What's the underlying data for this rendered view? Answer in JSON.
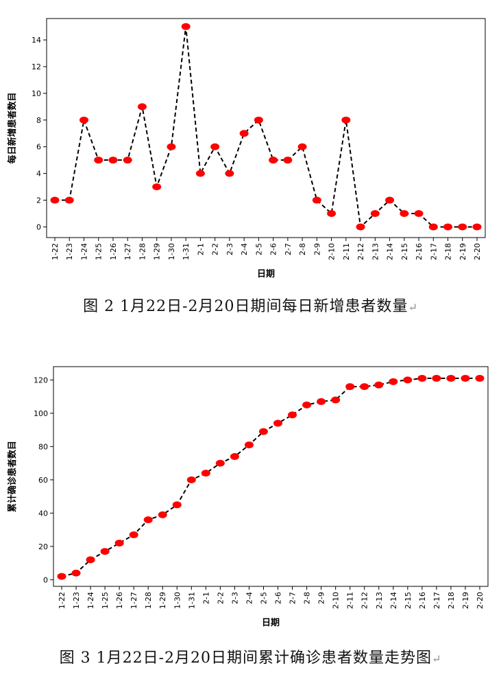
{
  "chart_data": [
    {
      "type": "line",
      "title": "",
      "xlabel": "日期",
      "ylabel": "每日新增患者数目",
      "categories": [
        "1-22",
        "1-23",
        "1-24",
        "1-25",
        "1-26",
        "1-27",
        "1-28",
        "1-29",
        "1-30",
        "1-31",
        "2-1",
        "2-2",
        "2-3",
        "2-4",
        "2-5",
        "2-6",
        "2-7",
        "2-8",
        "2-9",
        "2-10",
        "2-11",
        "2-12",
        "2-13",
        "2-14",
        "2-15",
        "2-16",
        "2-17",
        "2-18",
        "2-19",
        "2-20"
      ],
      "values": [
        2,
        2,
        8,
        5,
        5,
        5,
        9,
        3,
        6,
        15,
        4,
        6,
        4,
        7,
        8,
        5,
        5,
        6,
        2,
        1,
        8,
        0,
        1,
        2,
        1,
        1,
        0,
        0,
        0,
        0
      ],
      "ylim": [
        -0.8,
        15.6
      ],
      "yticks": [
        0,
        2,
        4,
        6,
        8,
        10,
        12,
        14
      ],
      "line_style": "dashed",
      "line_color": "#000000",
      "marker_color": "#ff0000",
      "grid": false
    },
    {
      "type": "line",
      "title": "",
      "xlabel": "日期",
      "ylabel": "累计确诊患者数目",
      "categories": [
        "1-22",
        "1-23",
        "1-24",
        "1-25",
        "1-26",
        "1-27",
        "1-28",
        "1-29",
        "1-30",
        "1-31",
        "2-1",
        "2-2",
        "2-3",
        "2-4",
        "2-5",
        "2-6",
        "2-7",
        "2-8",
        "2-9",
        "2-10",
        "2-11",
        "2-12",
        "2-13",
        "2-14",
        "2-15",
        "2-16",
        "2-17",
        "2-18",
        "2-19",
        "2-20"
      ],
      "values": [
        2,
        4,
        12,
        17,
        22,
        27,
        36,
        39,
        45,
        60,
        64,
        70,
        74,
        81,
        89,
        94,
        99,
        105,
        107,
        108,
        116,
        116,
        117,
        119,
        120,
        121,
        121,
        121,
        121,
        121
      ],
      "ylim": [
        -4,
        128
      ],
      "yticks": [
        0,
        20,
        40,
        60,
        80,
        100,
        120
      ],
      "line_style": "dashed",
      "line_color": "#000000",
      "marker_color": "#ff0000",
      "grid": false
    }
  ],
  "captions": {
    "fig1": "图 2  1月22日-2月20日期间每日新增患者数量",
    "fig2": "图 3  1月22日-2月20日期间累计确诊患者数量走势图"
  },
  "return_mark": "↵"
}
